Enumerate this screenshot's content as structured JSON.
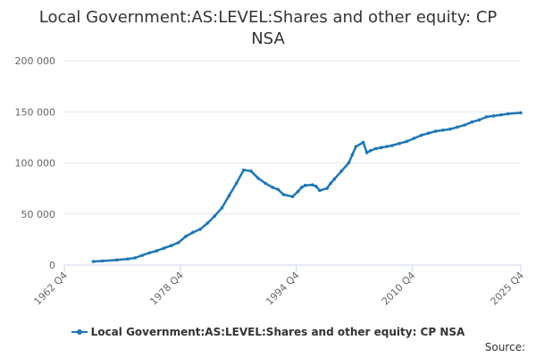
{
  "colors": {
    "series": "#1f77b4",
    "grid": "#e6e6e6",
    "axis": "#ccd6eb"
  },
  "chart_data": {
    "type": "line",
    "title": "Local Government:AS:LEVEL:Shares and other equity: CP NSA",
    "xlabel": "",
    "ylabel": "",
    "ylim": [
      0,
      200000
    ],
    "yticks": [
      0,
      50000,
      100000,
      150000,
      200000
    ],
    "ytick_labels": [
      "0",
      "50 000",
      "100 000",
      "150 000",
      "200 000"
    ],
    "xlim": [
      1962.75,
      2025.75
    ],
    "xticks": [
      1962.75,
      1978.75,
      1994.75,
      2010.75,
      2025.75
    ],
    "xtick_labels": [
      "1962 Q4",
      "1978 Q4",
      "1994 Q4",
      "2010 Q4",
      "2025 Q4"
    ],
    "legend": "bottom-center",
    "series": [
      {
        "name": "Local Government:AS:LEVEL:Shares and other equity: CP NSA",
        "x": [
          1966.75,
          1968,
          1970,
          1971.5,
          1972.5,
          1973.5,
          1974.5,
          1975.5,
          1976.5,
          1977.5,
          1978.5,
          1979.5,
          1980.5,
          1981.5,
          1982.5,
          1983.5,
          1984.5,
          1985.5,
          1986.5,
          1987.5,
          1988.5,
          1989.5,
          1990.5,
          1991.5,
          1992.25,
          1993,
          1994.25,
          1995,
          1995.5,
          1996,
          1997,
          1997.5,
          1998,
          1999,
          1999.5,
          2000,
          2001,
          2002,
          2002.5,
          2003,
          2004,
          2004.5,
          2005,
          2005.75,
          2006.5,
          2007.25,
          2008,
          2009,
          2010,
          2011,
          2012,
          2013,
          2014,
          2015,
          2016,
          2017,
          2018,
          2019,
          2020,
          2021,
          2022,
          2023,
          2024,
          2025.75
        ],
        "values": [
          3500,
          4000,
          5000,
          6000,
          7000,
          9500,
          12000,
          14000,
          16500,
          19000,
          22000,
          28000,
          32000,
          35000,
          41000,
          48000,
          56000,
          68000,
          80000,
          93000,
          92000,
          85000,
          80000,
          76000,
          74000,
          69000,
          67000,
          72000,
          76000,
          78000,
          78500,
          77000,
          73000,
          75000,
          80000,
          84000,
          92000,
          100000,
          108000,
          116000,
          120000,
          110000,
          112000,
          114000,
          115000,
          116000,
          117000,
          119000,
          121000,
          124000,
          127000,
          129000,
          131000,
          132000,
          133000,
          135000,
          137000,
          140000,
          142000,
          145000,
          146000,
          147000,
          148000,
          149000
        ]
      }
    ]
  },
  "source_label": "Source:"
}
